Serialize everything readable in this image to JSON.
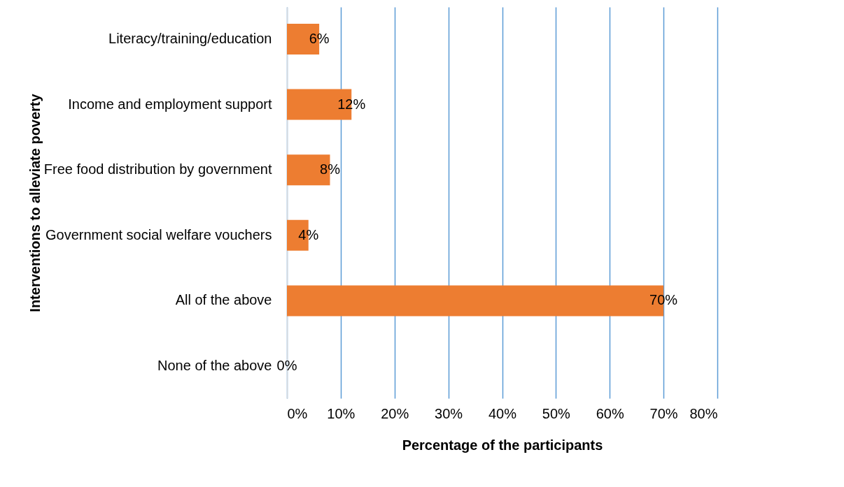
{
  "chart_data": {
    "type": "bar",
    "orientation": "horizontal",
    "ylabel": "Interventions to alleviate poverty",
    "xlabel": "Percentage of the participants",
    "categories": [
      "Literacy/training/education",
      "Income and employment support",
      "Free food distribution by government",
      "Government social welfare vouchers",
      "All of the above",
      "None of the above"
    ],
    "values": [
      6,
      12,
      8,
      4,
      70,
      0
    ],
    "value_labels": [
      "6%",
      "12%",
      "8%",
      "4%",
      "70%",
      "0%"
    ],
    "color": "#ed7d31",
    "xlim": [
      0,
      80
    ],
    "xticks": [
      {
        "value": 0,
        "label": "0%"
      },
      {
        "value": 10,
        "label": "10%"
      },
      {
        "value": 20,
        "label": "20%"
      },
      {
        "value": 30,
        "label": "30%"
      },
      {
        "value": 40,
        "label": "40%"
      },
      {
        "value": 50,
        "label": "50%"
      },
      {
        "value": 60,
        "label": "60%"
      },
      {
        "value": 70,
        "label": "70%"
      },
      {
        "value": 80,
        "label": "80%"
      }
    ],
    "grid": "x"
  }
}
